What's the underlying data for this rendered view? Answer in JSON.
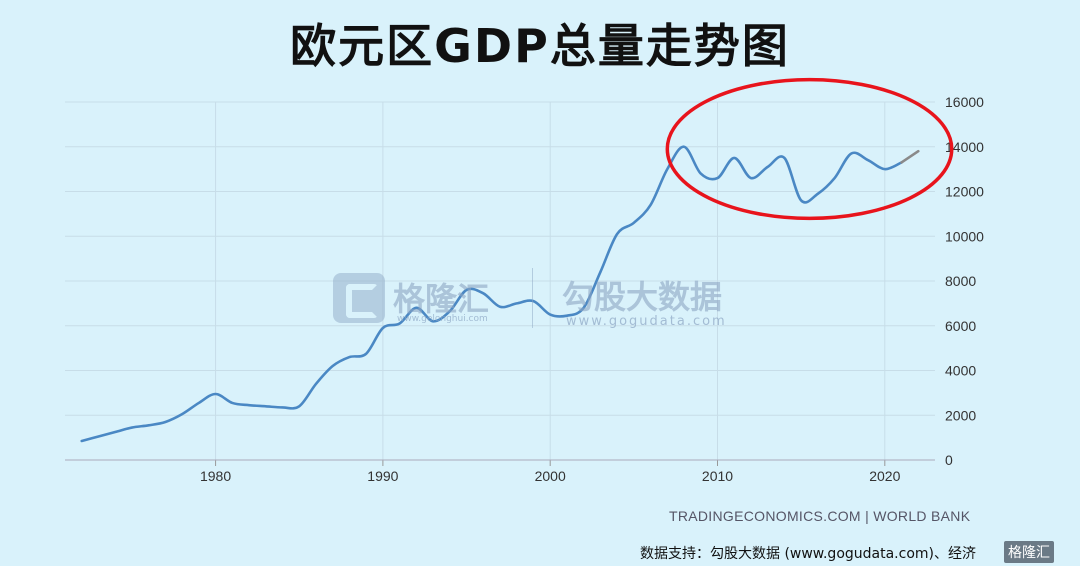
{
  "title": "欧元区GDP总量走势图",
  "watermark": {
    "brand_a": "格隆汇",
    "brand_a_url": "www.gelonghui.com",
    "brand_b": "勾股大数据",
    "brand_b_url": "www.gogudata.com"
  },
  "source_text": "TRADINGECONOMICS.COM | WORLD BANK",
  "credit_text": "数据支持：勾股大数据  (www.gogudata.com)、经济",
  "corner_text": "格隆汇",
  "colors": {
    "line": "#4a88c4",
    "forecast": "#8a8a8a",
    "highlight": "#e8141c",
    "grid": "#c7dde8"
  },
  "chart_data": {
    "type": "line",
    "title": "欧元区GDP总量走势图",
    "xlabel": "",
    "ylabel": "",
    "xlim": [
      1971,
      2023
    ],
    "ylim": [
      0,
      16000
    ],
    "x_ticks": [
      1980,
      1990,
      2000,
      2010,
      2020
    ],
    "y_ticks": [
      0,
      2000,
      4000,
      6000,
      8000,
      10000,
      12000,
      14000,
      16000
    ],
    "y_axis_position": "right",
    "grid": true,
    "series": [
      {
        "x": [
          1972,
          1973,
          1974,
          1975,
          1976,
          1977,
          1978,
          1979,
          1980,
          1981,
          1982,
          1983,
          1984,
          1985,
          1986,
          1987,
          1988,
          1989,
          1990,
          1991,
          1992,
          1993,
          1994,
          1995,
          1996,
          1997,
          1998,
          1999,
          2000,
          2001,
          2002,
          2003,
          2004,
          2005,
          2006,
          2007,
          2008,
          2009,
          2010,
          2011,
          2012,
          2013,
          2014,
          2015,
          2016,
          2017,
          2018,
          2019,
          2020,
          2021
        ],
        "y": [
          850,
          1050,
          1250,
          1450,
          1550,
          1700,
          2050,
          2550,
          2950,
          2550,
          2450,
          2400,
          2350,
          2400,
          3400,
          4200,
          4600,
          4750,
          5900,
          6100,
          6800,
          6200,
          6650,
          7600,
          7450,
          6850,
          7000,
          7100,
          6500,
          6450,
          6800,
          8400,
          10100,
          10600,
          11400,
          13000,
          14000,
          12800,
          12600,
          13500,
          12600,
          13100,
          13500,
          11600,
          11900,
          12600,
          13700,
          13400,
          13000,
          13300
        ]
      },
      {
        "x": [
          2021,
          2022
        ],
        "y": [
          13300,
          13800
        ],
        "style": "forecast"
      }
    ],
    "annotations": [
      {
        "type": "ellipse",
        "color": "#e8141c",
        "x_range": [
          2007,
          2024
        ],
        "y_range": [
          10800,
          17000
        ]
      }
    ]
  }
}
